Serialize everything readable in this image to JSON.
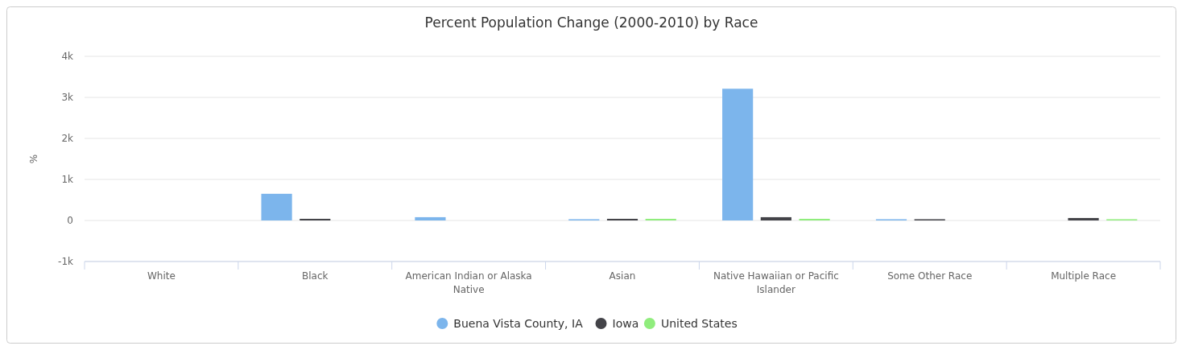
{
  "chart_data": {
    "type": "bar",
    "title": "Percent Population Change (2000-2010) by Race",
    "ylabel": "%",
    "categories": [
      "White",
      "Black",
      "American Indian or Alaska Native",
      "Asian",
      "Native Hawaiian or Pacific Islander",
      "Some Other Race",
      "Multiple Race"
    ],
    "series": [
      {
        "name": "Buena Vista County, IA",
        "color": "#7cb5ec",
        "values": [
          null,
          650,
          80,
          30,
          3210,
          30,
          null
        ]
      },
      {
        "name": "Iowa",
        "color": "#434348",
        "values": [
          null,
          40,
          null,
          40,
          80,
          30,
          60
        ]
      },
      {
        "name": "United States",
        "color": "#90ed7d",
        "values": [
          null,
          null,
          null,
          40,
          40,
          null,
          30
        ]
      }
    ],
    "ylim": [
      -1000,
      4000
    ],
    "yticks": [
      {
        "value": -1000,
        "label": "-1k"
      },
      {
        "value": 0,
        "label": "0"
      },
      {
        "value": 1000,
        "label": "1k"
      },
      {
        "value": 2000,
        "label": "2k"
      },
      {
        "value": 3000,
        "label": "3k"
      },
      {
        "value": 4000,
        "label": "4k"
      }
    ],
    "grid": "y",
    "legend": "bottom"
  }
}
